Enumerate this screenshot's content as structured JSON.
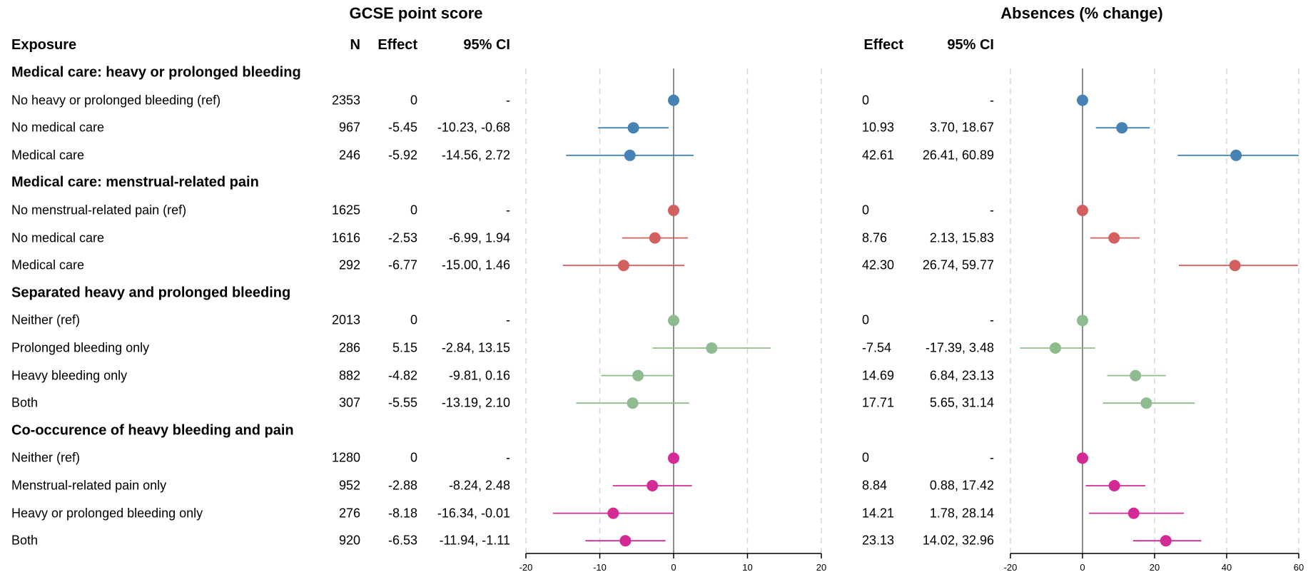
{
  "chart_data": {
    "type": "forest",
    "panels": [
      {
        "title": "GCSE point score",
        "xlim": [
          -20,
          20
        ],
        "ticks": [
          -20,
          -10,
          0,
          10,
          20
        ],
        "effect_header": "Effect",
        "ci_header": "95% CI"
      },
      {
        "title": "Absences (% change)",
        "xlim": [
          -20,
          60
        ],
        "ticks": [
          -20,
          0,
          20,
          40,
          60
        ],
        "effect_header": "Effect",
        "ci_header": "95% CI"
      }
    ],
    "headers": {
      "exposure": "Exposure",
      "n": "N"
    },
    "groups": [
      {
        "title": "Medical care: heavy or prolonged bleeding",
        "color": "#4682b4",
        "rows": [
          {
            "label": "No heavy or prolonged bleeding (ref)",
            "n": "2353",
            "gcse": {
              "effect": 0,
              "lo": 0,
              "hi": 0,
              "effect_text": "0",
              "ci_text": "-"
            },
            "abs": {
              "effect": 0,
              "lo": 0,
              "hi": 0,
              "effect_text": "0",
              "ci_text": "-"
            }
          },
          {
            "label": "No medical care",
            "n": "967",
            "gcse": {
              "effect": -5.45,
              "lo": -10.23,
              "hi": -0.68,
              "effect_text": "-5.45",
              "ci_text": "-10.23, -0.68"
            },
            "abs": {
              "effect": 10.93,
              "lo": 3.7,
              "hi": 18.67,
              "effect_text": "10.93",
              "ci_text": "3.70, 18.67"
            }
          },
          {
            "label": "Medical care",
            "n": "246",
            "gcse": {
              "effect": -5.92,
              "lo": -14.56,
              "hi": 2.72,
              "effect_text": "-5.92",
              "ci_text": "-14.56, 2.72"
            },
            "abs": {
              "effect": 42.61,
              "lo": 26.41,
              "hi": 60.89,
              "effect_text": "42.61",
              "ci_text": "26.41, 60.89"
            }
          }
        ]
      },
      {
        "title": "Medical care: menstrual-related pain",
        "color": "#d1605e",
        "rows": [
          {
            "label": "No menstrual-related pain (ref)",
            "n": "1625",
            "gcse": {
              "effect": 0,
              "lo": 0,
              "hi": 0,
              "effect_text": "0",
              "ci_text": "-"
            },
            "abs": {
              "effect": 0,
              "lo": 0,
              "hi": 0,
              "effect_text": "0",
              "ci_text": "-"
            }
          },
          {
            "label": "No medical care",
            "n": "1616",
            "gcse": {
              "effect": -2.53,
              "lo": -6.99,
              "hi": 1.94,
              "effect_text": "-2.53",
              "ci_text": "-6.99, 1.94"
            },
            "abs": {
              "effect": 8.76,
              "lo": 2.13,
              "hi": 15.83,
              "effect_text": "8.76",
              "ci_text": "2.13, 15.83"
            }
          },
          {
            "label": "Medical care",
            "n": "292",
            "gcse": {
              "effect": -6.77,
              "lo": -15.0,
              "hi": 1.46,
              "effect_text": "-6.77",
              "ci_text": "-15.00, 1.46"
            },
            "abs": {
              "effect": 42.3,
              "lo": 26.74,
              "hi": 59.77,
              "effect_text": "42.30",
              "ci_text": "26.74, 59.77"
            }
          }
        ]
      },
      {
        "title": "Separated heavy and prolonged bleeding",
        "color": "#8fbc8f",
        "rows": [
          {
            "label": "Neither (ref)",
            "n": "2013",
            "gcse": {
              "effect": 0,
              "lo": 0,
              "hi": 0,
              "effect_text": "0",
              "ci_text": "-"
            },
            "abs": {
              "effect": 0,
              "lo": 0,
              "hi": 0,
              "effect_text": "0",
              "ci_text": "-"
            }
          },
          {
            "label": "Prolonged bleeding only",
            "n": "286",
            "gcse": {
              "effect": 5.15,
              "lo": -2.84,
              "hi": 13.15,
              "effect_text": "5.15",
              "ci_text": "-2.84, 13.15"
            },
            "abs": {
              "effect": -7.54,
              "lo": -17.39,
              "hi": 3.48,
              "effect_text": "-7.54",
              "ci_text": "-17.39, 3.48"
            }
          },
          {
            "label": "Heavy bleeding only",
            "n": "882",
            "gcse": {
              "effect": -4.82,
              "lo": -9.81,
              "hi": 0.16,
              "effect_text": "-4.82",
              "ci_text": "-9.81, 0.16"
            },
            "abs": {
              "effect": 14.69,
              "lo": 6.84,
              "hi": 23.13,
              "effect_text": "14.69",
              "ci_text": "6.84, 23.13"
            }
          },
          {
            "label": "Both",
            "n": "307",
            "gcse": {
              "effect": -5.55,
              "lo": -13.19,
              "hi": 2.1,
              "effect_text": "-5.55",
              "ci_text": "-13.19, 2.10"
            },
            "abs": {
              "effect": 17.71,
              "lo": 5.65,
              "hi": 31.14,
              "effect_text": "17.71",
              "ci_text": "5.65, 31.14"
            }
          }
        ]
      },
      {
        "title": "Co-occurence of heavy bleeding and pain",
        "color": "#d42a96",
        "rows": [
          {
            "label": "Neither (ref)",
            "n": "1280",
            "gcse": {
              "effect": 0,
              "lo": 0,
              "hi": 0,
              "effect_text": "0",
              "ci_text": "-"
            },
            "abs": {
              "effect": 0,
              "lo": 0,
              "hi": 0,
              "effect_text": "0",
              "ci_text": "-"
            }
          },
          {
            "label": "Menstrual-related pain only",
            "n": "952",
            "gcse": {
              "effect": -2.88,
              "lo": -8.24,
              "hi": 2.48,
              "effect_text": "-2.88",
              "ci_text": "-8.24, 2.48"
            },
            "abs": {
              "effect": 8.84,
              "lo": 0.88,
              "hi": 17.42,
              "effect_text": "8.84",
              "ci_text": "0.88, 17.42"
            }
          },
          {
            "label": "Heavy or prolonged bleeding only",
            "n": "276",
            "gcse": {
              "effect": -8.18,
              "lo": -16.34,
              "hi": -0.01,
              "effect_text": "-8.18",
              "ci_text": "-16.34, -0.01"
            },
            "abs": {
              "effect": 14.21,
              "lo": 1.78,
              "hi": 28.14,
              "effect_text": "14.21",
              "ci_text": "1.78, 28.14"
            }
          },
          {
            "label": "Both",
            "n": "920",
            "gcse": {
              "effect": -6.53,
              "lo": -11.94,
              "hi": -1.11,
              "effect_text": "-6.53",
              "ci_text": "-11.94, -1.11"
            },
            "abs": {
              "effect": 23.13,
              "lo": 14.02,
              "hi": 32.96,
              "effect_text": "23.13",
              "ci_text": "14.02, 32.96"
            }
          }
        ]
      }
    ]
  }
}
